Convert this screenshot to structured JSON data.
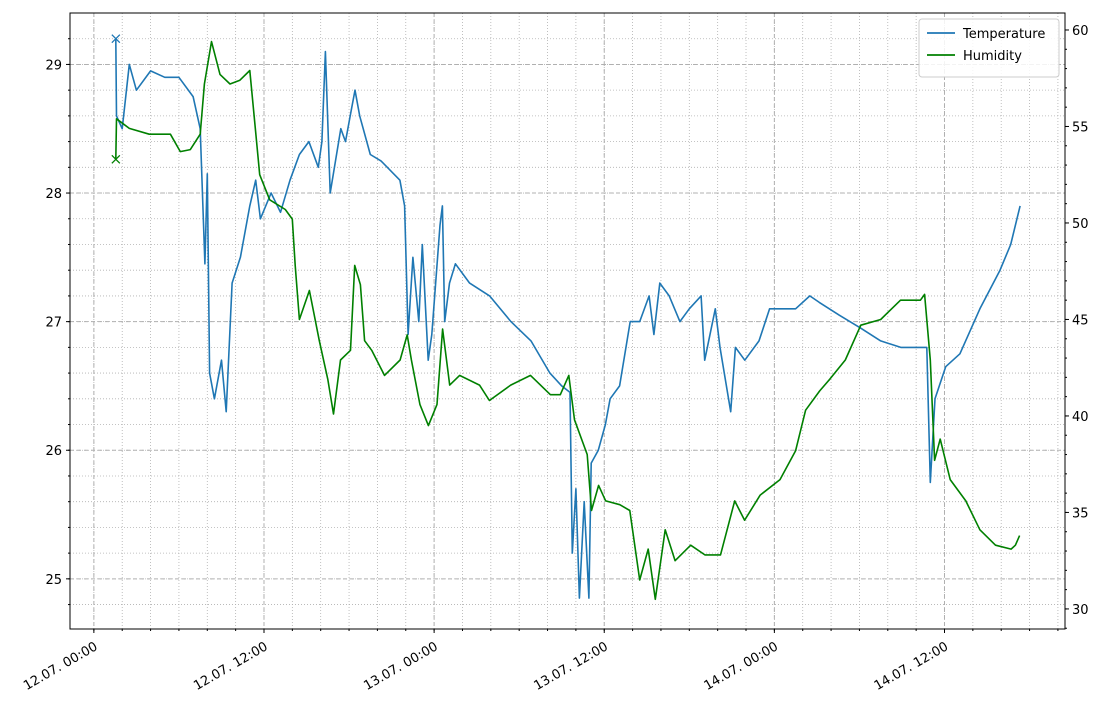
{
  "chart_data": {
    "type": "line",
    "xlim": [
      "11.07. 22:19",
      "14.07. 20:30"
    ],
    "xticks": [
      "12.07. 00:00",
      "12.07. 12:00",
      "13.07. 00:00",
      "13.07. 12:00",
      "14.07. 00:00",
      "14.07. 12:00"
    ],
    "ylim": [
      24.61,
      29.4
    ],
    "yticks": [
      25,
      26,
      27,
      28,
      29
    ],
    "y2lim": [
      28.96,
      60.88
    ],
    "y2ticks": [
      30,
      35,
      40,
      45,
      50,
      55,
      60
    ],
    "grid": true,
    "minor_grid": true,
    "legend": "upper right",
    "first_marker": "x",
    "series": [
      {
        "name": "Temperature",
        "color": "#1f77b4",
        "x": [
          "12.07. 01:33",
          "12.07. 01:36",
          "12.07. 02:00",
          "12.07. 02:30",
          "12.07. 03:00",
          "12.07. 04:00",
          "12.07. 05:00",
          "12.07. 06:00",
          "12.07. 07:00",
          "12.07. 07:30",
          "12.07. 07:50",
          "12.07. 08:00",
          "12.07. 08:10",
          "12.07. 08:30",
          "12.07. 09:00",
          "12.07. 09:20",
          "12.07. 09:45",
          "12.07. 10:20",
          "12.07. 11:00",
          "12.07. 11:25",
          "12.07. 11:45",
          "12.07. 12:30",
          "12.07. 13:10",
          "12.07. 13:50",
          "12.07. 14:30",
          "12.07. 15:10",
          "12.07. 15:50",
          "12.07. 16:05",
          "12.07. 16:20",
          "12.07. 16:40",
          "12.07. 17:25",
          "12.07. 17:45",
          "12.07. 18:05",
          "12.07. 18:25",
          "12.07. 18:45",
          "12.07. 19:30",
          "12.07. 20:15",
          "12.07. 21:35",
          "12.07. 21:55",
          "12.07. 22:10",
          "12.07. 22:30",
          "12.07. 22:55",
          "12.07. 23:10",
          "12.07. 23:35",
          "12.07. 23:50",
          "13.07. 00:25",
          "13.07. 00:35",
          "13.07. 00:45",
          "13.07. 01:05",
          "13.07. 01:30",
          "13.07. 02:30",
          "13.07. 03:55",
          "13.07. 05:25",
          "13.07. 06:50",
          "13.07. 08:10",
          "13.07. 09:00",
          "13.07. 09:35",
          "13.07. 09:45",
          "13.07. 10:00",
          "13.07. 10:15",
          "13.07. 10:35",
          "13.07. 10:55",
          "13.07. 11:05",
          "13.07. 11:35",
          "13.07. 12:05",
          "13.07. 12:25",
          "13.07. 13:05",
          "13.07. 13:50",
          "13.07. 14:30",
          "13.07. 15:10",
          "13.07. 15:30",
          "13.07. 15:55",
          "13.07. 16:35",
          "13.07. 17:20",
          "13.07. 18:00",
          "13.07. 18:50",
          "13.07. 19:05",
          "13.07. 19:50",
          "13.07. 20:10",
          "13.07. 20:55",
          "13.07. 21:15",
          "13.07. 21:55",
          "13.07. 22:55",
          "13.07. 23:40",
          "14.07. 00:25",
          "14.07. 01:30",
          "14.07. 02:30",
          "14.07. 03:10",
          "14.07. 04:35",
          "14.07. 06:05",
          "14.07. 07:30",
          "14.07. 08:55",
          "14.07. 10:20",
          "14.07. 10:45",
          "14.07. 11:00",
          "14.07. 11:20",
          "14.07. 12:05",
          "14.07. 13:05",
          "14.07. 14:30",
          "14.07. 15:55",
          "14.07. 16:40",
          "14.07. 17:20"
        ],
        "values": [
          29.2,
          28.6,
          28.5,
          29.0,
          28.8,
          28.95,
          28.9,
          28.9,
          28.75,
          28.5,
          27.45,
          28.15,
          26.6,
          26.4,
          26.7,
          26.3,
          27.3,
          27.5,
          27.9,
          28.1,
          27.8,
          28.0,
          27.85,
          28.1,
          28.3,
          28.4,
          28.2,
          28.4,
          29.1,
          28.0,
          28.5,
          28.4,
          28.6,
          28.8,
          28.6,
          28.3,
          28.25,
          28.1,
          27.9,
          26.9,
          27.5,
          27.0,
          27.6,
          26.7,
          26.9,
          27.75,
          27.9,
          27.0,
          27.3,
          27.45,
          27.3,
          27.2,
          27.0,
          26.85,
          26.6,
          26.5,
          26.45,
          25.2,
          25.7,
          24.85,
          25.6,
          24.85,
          25.9,
          26.0,
          26.2,
          26.4,
          26.5,
          27.0,
          27.0,
          27.2,
          26.9,
          27.3,
          27.2,
          27.0,
          27.1,
          27.2,
          26.7,
          27.1,
          26.8,
          26.3,
          26.8,
          26.7,
          26.85,
          27.1,
          27.1,
          27.1,
          27.2,
          27.15,
          27.05,
          26.95,
          26.85,
          26.8,
          26.8,
          26.8,
          25.75,
          26.4,
          26.65,
          26.75,
          27.1,
          27.4,
          27.6,
          27.9
        ]
      },
      {
        "name": "Humidity",
        "color": "#008000",
        "axis": "y2",
        "x": [
          "12.07. 01:33",
          "12.07. 01:36",
          "12.07. 02:30",
          "12.07. 03:54",
          "12.07. 05:24",
          "12.07. 06:06",
          "12.07. 06:48",
          "12.07. 07:30",
          "12.07. 07:48",
          "12.07. 08:18",
          "12.07. 08:54",
          "12.07. 09:36",
          "12.07. 10:18",
          "12.07. 11:00",
          "12.07. 11:24",
          "12.07. 11:42",
          "12.07. 12:24",
          "12.07. 13:30",
          "12.07. 14:00",
          "12.07. 14:12",
          "12.07. 14:30",
          "12.07. 15:12",
          "12.07. 15:54",
          "12.07. 16:30",
          "12.07. 16:54",
          "12.07. 17:24",
          "12.07. 18:06",
          "12.07. 18:24",
          "12.07. 18:48",
          "12.07. 19:06",
          "12.07. 19:36",
          "12.07. 20:30",
          "12.07. 21:36",
          "12.07. 22:06",
          "12.07. 22:24",
          "12.07. 23:00",
          "12.07. 23:36",
          "13.07. 00:12",
          "13.07. 00:36",
          "13.07. 01:06",
          "13.07. 01:48",
          "13.07. 03:12",
          "13.07. 03:54",
          "13.07. 05:24",
          "13.07. 06:48",
          "13.07. 08:12",
          "13.07. 08:54",
          "13.07. 09:30",
          "13.07. 09:54",
          "13.07. 10:48",
          "13.07. 11:06",
          "13.07. 11:36",
          "13.07. 12:06",
          "13.07. 13:06",
          "13.07. 13:48",
          "13.07. 14:30",
          "13.07. 15:06",
          "13.07. 15:36",
          "13.07. 16:18",
          "13.07. 17:00",
          "13.07. 18:06",
          "13.07. 19:06",
          "13.07. 20:12",
          "13.07. 21:12",
          "13.07. 21:54",
          "13.07. 23:00",
          "14.07. 00:24",
          "14.07. 01:30",
          "14.07. 02:12",
          "14.07. 03:12",
          "14.07. 03:54",
          "14.07. 05:00",
          "14.07. 06:06",
          "14.07. 07:30",
          "14.07. 08:12",
          "14.07. 08:54",
          "14.07. 10:18",
          "14.07. 10:36",
          "14.07. 11:00",
          "14.07. 11:18",
          "14.07. 11:42",
          "14.07. 12:24",
          "14.07. 13:30",
          "14.07. 14:30",
          "14.07. 15:36",
          "14.07. 16:42",
          "14.07. 17:00",
          "14.07. 17:18"
        ],
        "values": [
          53.3,
          55.4,
          54.9,
          54.6,
          54.6,
          53.7,
          53.8,
          54.6,
          57.2,
          59.4,
          57.7,
          57.2,
          57.4,
          57.9,
          54.8,
          52.5,
          51.2,
          50.7,
          50.2,
          47.8,
          45.0,
          46.5,
          43.9,
          41.9,
          40.1,
          42.9,
          43.4,
          47.8,
          46.8,
          43.9,
          43.4,
          42.1,
          42.9,
          44.2,
          42.9,
          40.6,
          39.5,
          40.6,
          44.5,
          41.6,
          42.1,
          41.6,
          40.8,
          41.6,
          42.1,
          41.1,
          41.1,
          42.1,
          39.8,
          38.0,
          35.1,
          36.4,
          35.6,
          35.4,
          35.1,
          31.5,
          33.1,
          30.5,
          34.1,
          32.5,
          33.3,
          32.8,
          32.8,
          35.6,
          34.6,
          35.9,
          36.7,
          38.2,
          40.3,
          41.3,
          41.9,
          42.9,
          44.7,
          45.0,
          45.5,
          46.0,
          46.0,
          46.3,
          42.9,
          37.7,
          38.8,
          36.7,
          35.6,
          34.1,
          33.3,
          33.1,
          33.3,
          33.8
        ]
      }
    ]
  }
}
